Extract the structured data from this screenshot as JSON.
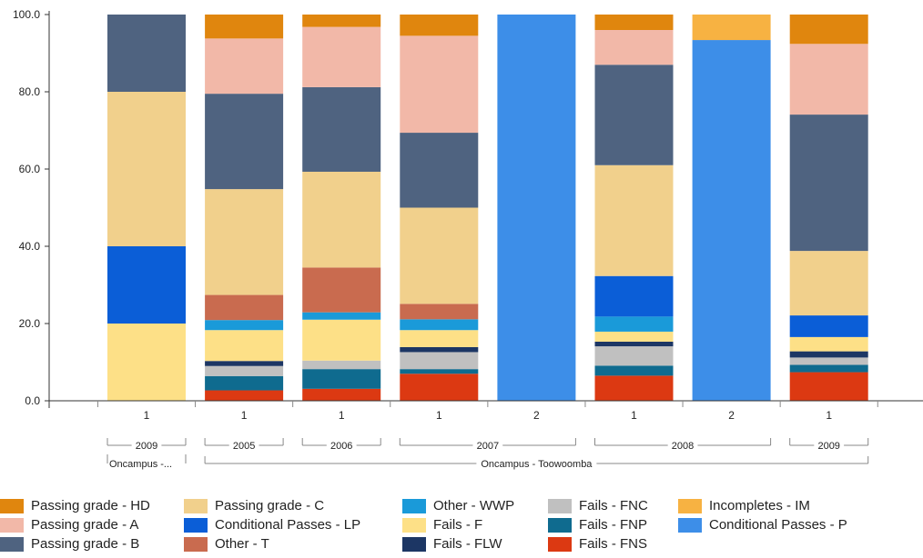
{
  "chart_data": {
    "type": "bar",
    "stacked": true,
    "ylim": [
      0,
      100
    ],
    "y_ticks": [
      "0.0",
      "20.0",
      "40.0",
      "60.0",
      "80.0",
      "100.0"
    ],
    "categories": [
      "1",
      "1",
      "1",
      "1",
      "2",
      "1",
      "2",
      "1"
    ],
    "year_groups": [
      {
        "label": "2009",
        "bars": [
          0
        ]
      },
      {
        "label": "2005",
        "bars": [
          1
        ]
      },
      {
        "label": "2006",
        "bars": [
          2
        ]
      },
      {
        "label": "2007",
        "bars": [
          3,
          4
        ]
      },
      {
        "label": "2008",
        "bars": [
          5,
          6
        ]
      },
      {
        "label": "2009",
        "bars": [
          7
        ]
      }
    ],
    "campus_groups": [
      {
        "label": "Oncampus -...",
        "bars": [
          0
        ]
      },
      {
        "label": "Oncampus - Toowoomba",
        "bars": [
          1,
          7
        ]
      }
    ],
    "series": [
      {
        "name": "Fails - FNS",
        "color": "#dc3912",
        "values": [
          0,
          2.7,
          3.1,
          7.0,
          0,
          6.5,
          0,
          7.4
        ]
      },
      {
        "name": "Fails - FNP",
        "color": "#0f6b8f",
        "values": [
          0,
          3.7,
          5.1,
          1.2,
          0,
          2.6,
          0,
          1.9
        ]
      },
      {
        "name": "Fails - FNC",
        "color": "#c0c0c0",
        "values": [
          0,
          2.6,
          2.2,
          4.4,
          0,
          5.0,
          0,
          1.9
        ]
      },
      {
        "name": "Fails - FLW",
        "color": "#1c3664",
        "values": [
          0,
          1.3,
          0,
          1.3,
          0,
          1.2,
          0,
          1.6
        ]
      },
      {
        "name": "Fails - F",
        "color": "#fde087",
        "values": [
          20.0,
          8.0,
          10.6,
          4.4,
          0,
          2.6,
          0,
          3.7
        ]
      },
      {
        "name": "Other - WWP",
        "color": "#1a9ad9",
        "values": [
          0,
          2.6,
          1.9,
          2.8,
          0,
          3.9,
          0,
          0
        ]
      },
      {
        "name": "Conditional Passes - LP",
        "color": "#0b5ed7",
        "values": [
          20.0,
          0,
          0,
          0,
          0,
          10.5,
          0,
          5.6
        ]
      },
      {
        "name": "Other - T",
        "color": "#c96b4f",
        "values": [
          0,
          6.5,
          11.6,
          4.0,
          0,
          0,
          0,
          0
        ]
      },
      {
        "name": "Passing grade - C",
        "color": "#f1d08c",
        "values": [
          40.0,
          27.4,
          24.8,
          24.9,
          0,
          28.7,
          0,
          16.7
        ]
      },
      {
        "name": "Passing grade - B",
        "color": "#4f6380",
        "values": [
          20.0,
          24.7,
          21.9,
          19.4,
          0,
          26.0,
          0,
          35.3
        ]
      },
      {
        "name": "Passing grade - A",
        "color": "#f2b8a8",
        "values": [
          0,
          14.3,
          15.6,
          25.1,
          0,
          9.0,
          0,
          18.3
        ]
      },
      {
        "name": "Passing grade - HD",
        "color": "#e0860e",
        "values": [
          0,
          6.2,
          3.2,
          5.5,
          0,
          4.0,
          0,
          7.6
        ]
      },
      {
        "name": "Conditional Passes - P",
        "color": "#3d8ee8",
        "values": [
          0,
          0,
          0,
          0,
          100.0,
          0,
          93.4,
          0
        ]
      },
      {
        "name": "Incompletes - IM",
        "color": "#f7b242",
        "values": [
          0,
          0,
          0,
          0,
          0,
          0,
          6.6,
          0
        ]
      }
    ],
    "legend": {
      "position": "bottom",
      "columns": [
        [
          "Passing grade - HD",
          "Passing grade - A",
          "Passing grade - B"
        ],
        [
          "Passing grade - C",
          "Conditional Passes - LP",
          "Other - T"
        ],
        [
          "Other - WWP",
          "Fails - F",
          "Fails - FLW"
        ],
        [
          "Fails - FNC",
          "Fails - FNP",
          "Fails - FNS"
        ],
        [
          "Incompletes - IM",
          "Conditional Passes - P"
        ]
      ]
    },
    "grid": false
  }
}
